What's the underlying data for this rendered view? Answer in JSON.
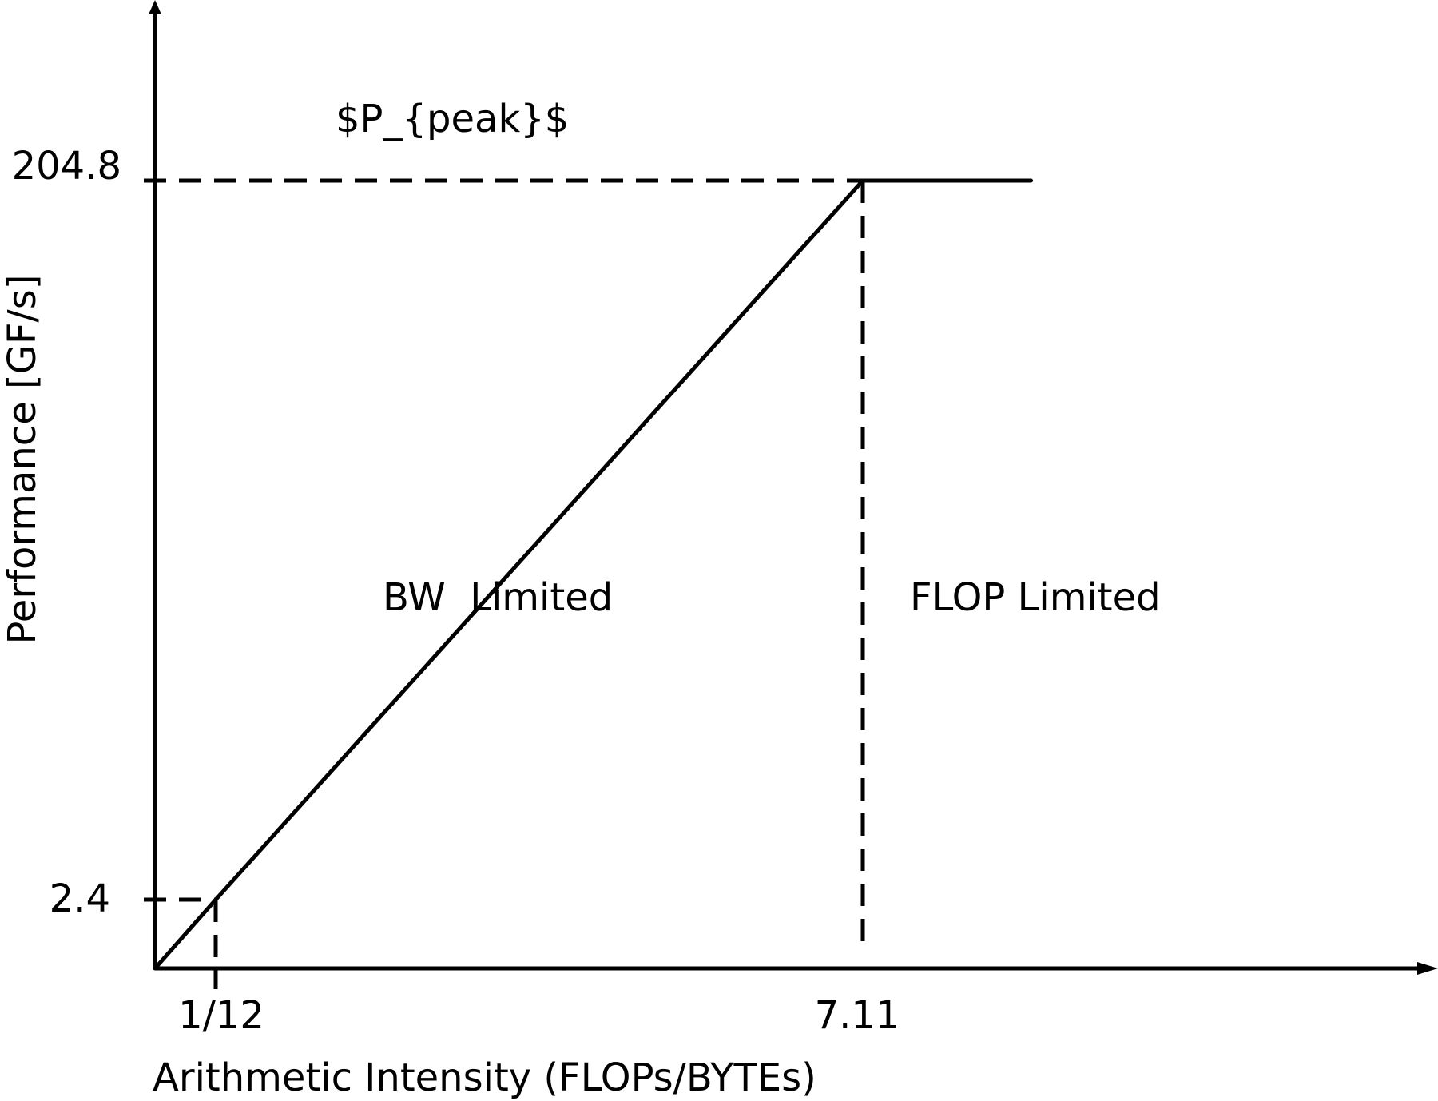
{
  "chart_data": {
    "type": "line",
    "title": "",
    "xlabel": "Arithmetic Intensity (FLOPs/BYTEs)",
    "ylabel": "Performance [GF/s]",
    "peak_label": "$P_{peak}$",
    "x_ticks": [
      {
        "value": 0.0833,
        "label": "1/12"
      },
      {
        "value": 7.11,
        "label": "7.11"
      }
    ],
    "y_ticks": [
      {
        "value": 2.4,
        "label": "2.4"
      },
      {
        "value": 204.8,
        "label": "204.8"
      }
    ],
    "series": [
      {
        "points": [
          [
            0,
            0
          ],
          [
            0.0833,
            2.4
          ],
          [
            7.11,
            204.8
          ],
          [
            9.0,
            204.8
          ]
        ]
      }
    ],
    "regions": [
      {
        "label": "BW  Limited"
      },
      {
        "label": "FLOP Limited"
      }
    ],
    "grid": false
  }
}
